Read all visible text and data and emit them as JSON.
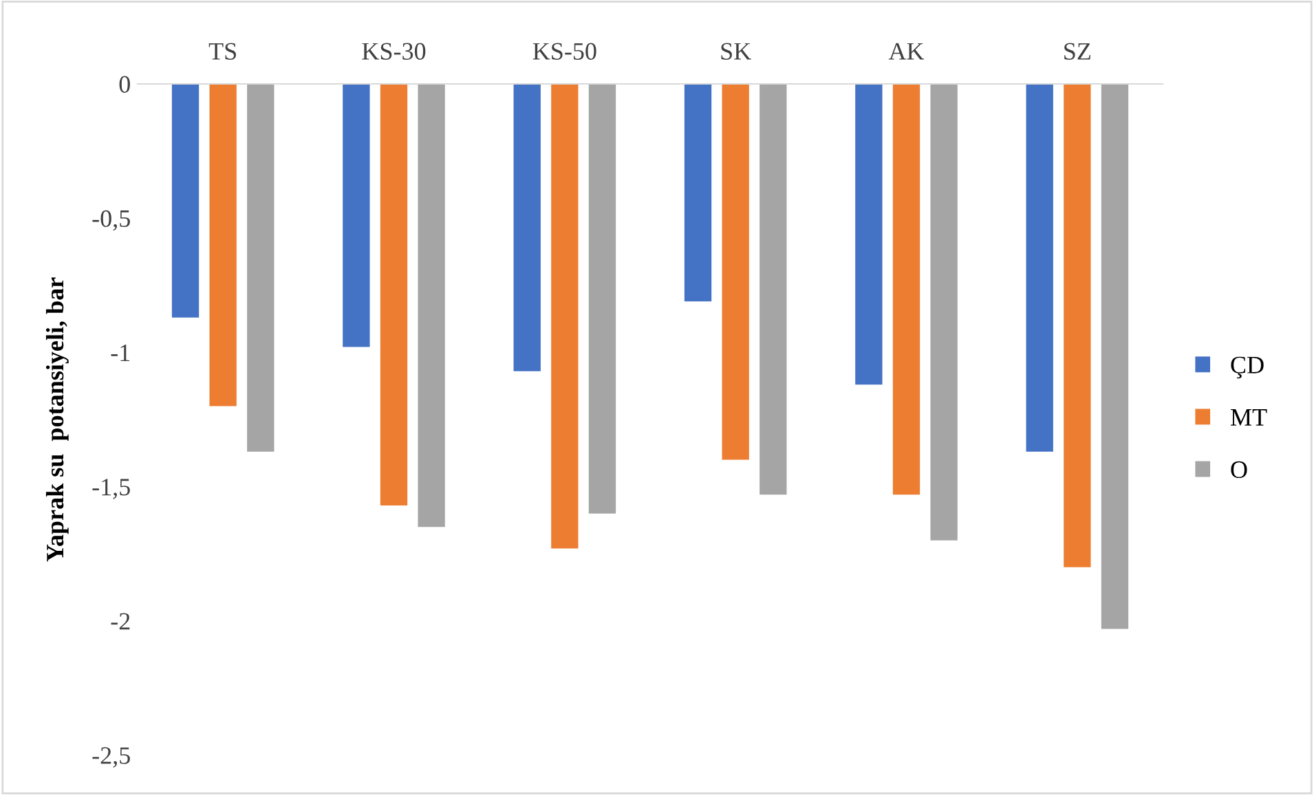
{
  "chart_data": {
    "type": "bar",
    "ylabel": "Yaprak su  potansiyeli, bar",
    "categories": [
      "TS",
      "KS-30",
      "KS-50",
      "SK",
      "AK",
      "SZ"
    ],
    "series": [
      {
        "name": "ÇD",
        "color": "#4472c4",
        "values": [
          -0.87,
          -0.98,
          -1.07,
          -0.81,
          -1.12,
          -1.37
        ]
      },
      {
        "name": "MT",
        "color": "#ed7d31",
        "values": [
          -1.2,
          -1.57,
          -1.73,
          -1.4,
          -1.53,
          -1.8
        ]
      },
      {
        "name": "O",
        "color": "#a5a5a5",
        "values": [
          -1.37,
          -1.65,
          -1.6,
          -1.53,
          -1.7,
          -2.03
        ]
      }
    ],
    "ylim": [
      -2.5,
      0
    ],
    "yticks": [
      {
        "value": 0,
        "label": "0"
      },
      {
        "value": -0.5,
        "label": "-0,5"
      },
      {
        "value": -1,
        "label": "-1"
      },
      {
        "value": -1.5,
        "label": "-1,5"
      },
      {
        "value": -2,
        "label": "-2"
      },
      {
        "value": -2.5,
        "label": "-2,5"
      }
    ],
    "grid": false,
    "legend": "right"
  }
}
